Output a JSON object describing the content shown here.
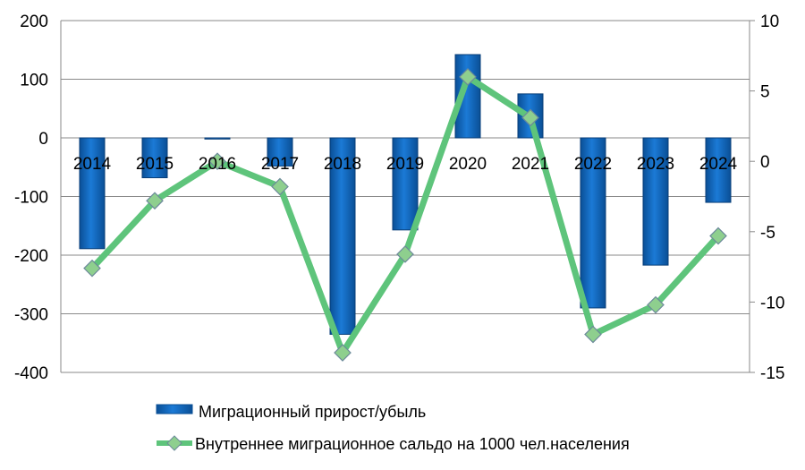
{
  "chart_data": {
    "type": "bar+line",
    "categories": [
      "2014",
      "2015",
      "2016",
      "2017",
      "2018",
      "2019",
      "2020",
      "2021",
      "2022",
      "2023",
      "2024"
    ],
    "series": [
      {
        "name": "Миграционный прирост/убыль",
        "type": "bar",
        "axis": "left",
        "color": "#0e64b8",
        "values": [
          -189,
          -68,
          -2,
          -48,
          -335,
          -157,
          142,
          75,
          -290,
          -217,
          -110
        ]
      },
      {
        "name": "Внутреннее миграционное сальдо на 1000 чел.населения",
        "type": "line",
        "axis": "right",
        "color": "#5ec47b",
        "marker_color": "#8ecf8e",
        "values": [
          -7.6,
          -2.8,
          0,
          -1.8,
          -13.6,
          -6.6,
          6,
          3.1,
          -12.3,
          -10.2,
          -5.3
        ]
      }
    ],
    "y_left": {
      "min": -400,
      "max": 200,
      "ticks": [
        200,
        100,
        0,
        -100,
        -200,
        -300,
        -400
      ]
    },
    "y_right": {
      "min": -15,
      "max": 10,
      "ticks": [
        10,
        5,
        0,
        -5,
        -10,
        -15
      ]
    },
    "grid": true,
    "legend_position": "bottom"
  }
}
